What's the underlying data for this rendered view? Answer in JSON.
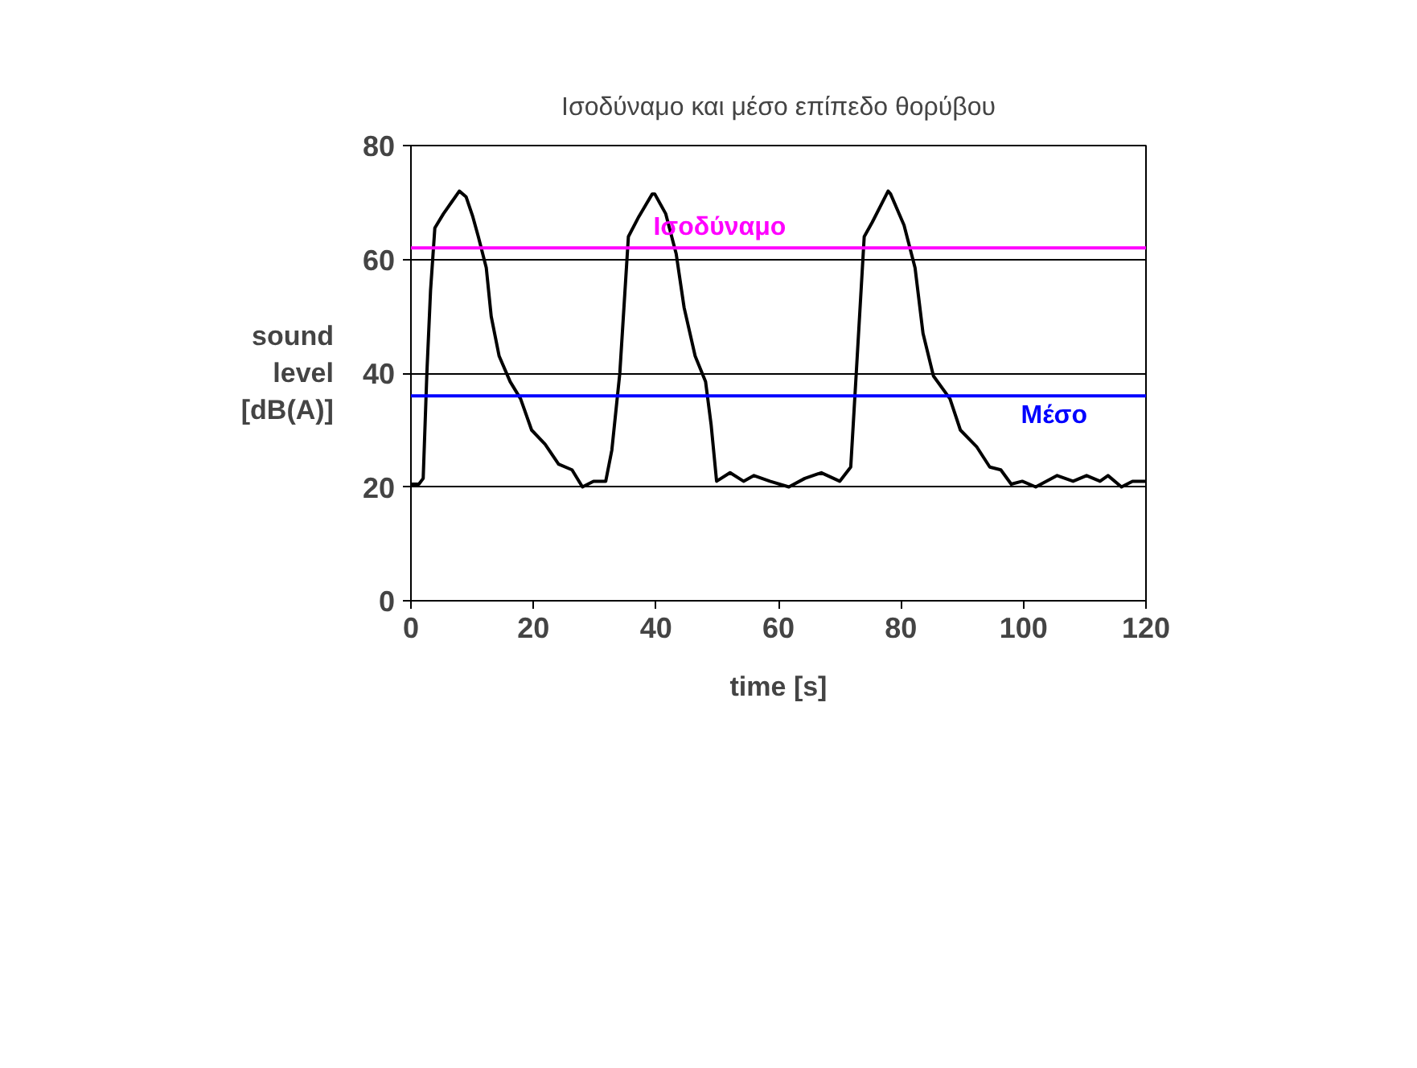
{
  "chart_data": {
    "type": "line",
    "title": "Ισοδύναμο και μέσο επίπεδο θορύβου",
    "xlabel": "time [s]",
    "ylabel": "sound level [dB(A)]",
    "xlim": [
      0,
      120
    ],
    "ylim": [
      0,
      80
    ],
    "xticks": [
      0,
      20,
      40,
      60,
      80,
      100,
      120
    ],
    "yticks": [
      0,
      20,
      40,
      60,
      80
    ],
    "grid": "y",
    "marker": "none",
    "line_style": "solid",
    "series": [
      {
        "color": "#000000",
        "x": [
          0,
          1.3,
          2,
          2.6,
          3.2,
          3.9,
          5.3,
          6.6,
          7.9,
          9,
          10.1,
          11,
          12.3,
          13.1,
          14.4,
          16.2,
          17.9,
          19.7,
          21.9,
          24.1,
          26.3,
          28,
          29.8,
          31.8,
          32.8,
          34.1,
          35.5,
          37.2,
          39.4,
          39.8,
          41.6,
          43.3,
          44.6,
          46.4,
          48.1,
          49,
          49.9,
          52.1,
          54.3,
          56,
          58.6,
          61.7,
          64.3,
          67,
          70,
          71.8,
          72.7,
          74,
          75.3,
          77.9,
          78.3,
          80.5,
          82.3,
          83.6,
          85.3,
          88,
          89.7,
          92.4,
          94.5,
          96.3,
          98,
          99.8,
          102,
          105.5,
          108.1,
          110.3,
          112.5,
          113.8,
          116,
          117.8,
          120
        ],
        "values": [
          20.5,
          20.5,
          21.5,
          40,
          54.5,
          65.5,
          68,
          70,
          72,
          71,
          67.5,
          64,
          58.5,
          50,
          43,
          38.5,
          35.5,
          30,
          27.5,
          24,
          23,
          20,
          21,
          21,
          26.5,
          40,
          64,
          67.5,
          71.5,
          71.5,
          68,
          61,
          51.5,
          43,
          38.5,
          31,
          21,
          22.5,
          21,
          22,
          21,
          20,
          21.5,
          22.5,
          21,
          23.5,
          40,
          64,
          66.5,
          72,
          71.5,
          66,
          58.5,
          47,
          39.5,
          35.5,
          30,
          27,
          23.5,
          23,
          20.5,
          21,
          20,
          22,
          21,
          22,
          21,
          22,
          20,
          21,
          21
        ]
      }
    ],
    "ref_lines": [
      {
        "axis": "y",
        "value": 62,
        "label": "Ισοδύναμο",
        "color": "#ff00ff"
      },
      {
        "axis": "y",
        "value": 36,
        "label": "Μέσο",
        "color": "#0000ff"
      }
    ]
  }
}
